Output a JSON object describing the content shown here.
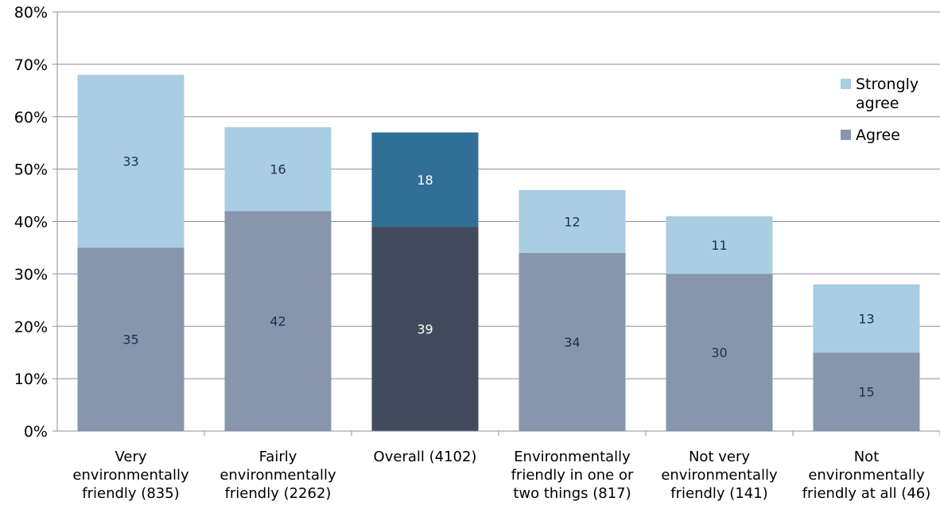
{
  "chart_data": {
    "type": "bar",
    "stacked": true,
    "categories": [
      [
        "Very",
        "environmentally",
        "friendly (835)"
      ],
      [
        "Fairly",
        "environmentally",
        "friendly (2262)"
      ],
      [
        "Overall (4102)"
      ],
      [
        "Environmentally",
        "friendly in one or",
        "two things (817)"
      ],
      [
        "Not very",
        "environmentally",
        "friendly (141)"
      ],
      [
        "Not",
        "environmentally",
        "friendly at all (46)"
      ]
    ],
    "series": [
      {
        "name": "Agree",
        "values": [
          35,
          42,
          39,
          34,
          30,
          15
        ],
        "labels": [
          "35",
          "42",
          "39",
          "34",
          "30",
          "15"
        ]
      },
      {
        "name": "Strongly agree",
        "values": [
          33,
          16,
          18,
          12,
          11,
          13
        ],
        "labels": [
          "33",
          "16",
          "18",
          "12",
          "11",
          "13"
        ]
      }
    ],
    "highlight_index": 2,
    "ylim": [
      0,
      80
    ],
    "yticks": [
      "0%",
      "10%",
      "20%",
      "30%",
      "40%",
      "50%",
      "60%",
      "70%",
      "80%"
    ],
    "grid": true,
    "legend": {
      "position": "right",
      "entries": [
        {
          "lines": [
            "Strongly",
            "agree"
          ],
          "color": "#a9cde3"
        },
        {
          "lines": [
            "Agree"
          ],
          "color": "#8796ad"
        }
      ]
    },
    "colors": {
      "agree": "#8796ad",
      "strongly_agree": "#a9cde3",
      "highlight_agree": "#424b5e",
      "highlight_strongly_agree": "#306f96",
      "gridline": "#8a8fa0",
      "label_dark": "#1f2f4f",
      "label_light": "#ffffff"
    }
  }
}
